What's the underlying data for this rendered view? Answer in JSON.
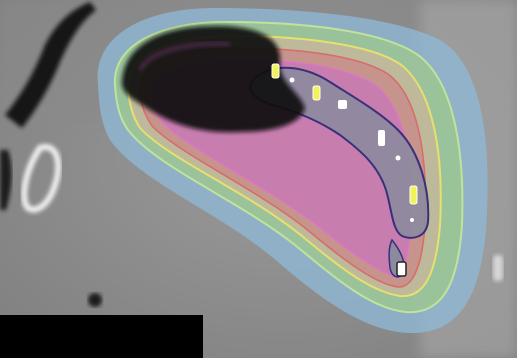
{
  "image": {
    "kind": "ct-slice-with-isodose-overlay",
    "colors": {
      "ct_background": "#8f8f8f",
      "outer_dose_wash": "#8fb8d6",
      "green_band": "#9ec78f",
      "yellow_line": "#e6e070",
      "red_band": "#c98a8a",
      "magenta_band": "#c77ab5",
      "target_contour": "#3a2f7a",
      "air_pocket": "#000000",
      "marker": "#f2f25a",
      "black_mask": "#000000"
    }
  }
}
